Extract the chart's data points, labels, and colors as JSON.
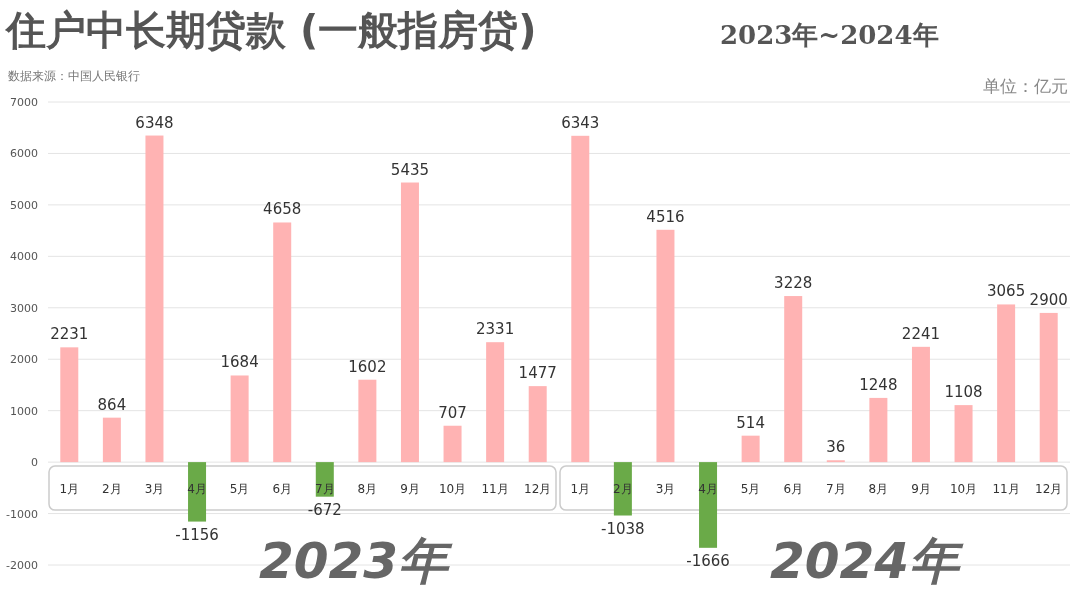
{
  "chart_data": {
    "type": "bar",
    "title": "住户中长期贷款 (一般指房贷)",
    "subtitle": "2023年~2024年",
    "ylabel": "单位：亿元",
    "annotations": [
      "数据来源：中国人民银行",
      "2023年",
      "2024年"
    ],
    "categories": [
      "1月",
      "2月",
      "3月",
      "4月",
      "5月",
      "6月",
      "7月",
      "8月",
      "9月",
      "10月",
      "11月",
      "12月",
      "1月",
      "2月",
      "3月",
      "4月",
      "5月",
      "6月",
      "7月",
      "8月",
      "9月",
      "10月",
      "11月",
      "12月"
    ],
    "values": [
      2231,
      864,
      6348,
      -1156,
      1684,
      4658,
      -672,
      1602,
      5435,
      707,
      2331,
      1477,
      6343,
      -1038,
      4516,
      -1666,
      514,
      3228,
      36,
      1248,
      2241,
      1108,
      3065,
      2900
    ],
    "colors": [
      "#ffb3b3",
      "#ffb3b3",
      "#ffb3b3",
      "#6aaa48",
      "#ffb3b3",
      "#ffb3b3",
      "#6aaa48",
      "#ffb3b3",
      "#ffb3b3",
      "#ffb3b3",
      "#ffb3b3",
      "#ffb3b3",
      "#ffb3b3",
      "#6aaa48",
      "#ffb3b3",
      "#6aaa48",
      "#ffb3b3",
      "#ffb3b3",
      "#ffb3b3",
      "#ffb3b3",
      "#ffb3b3",
      "#ffb3b3",
      "#ffb3b3",
      "#ffb3b3"
    ],
    "ylim": [
      -2000,
      7000
    ],
    "yticks": [
      -2000,
      -1000,
      0,
      1000,
      2000,
      3000,
      4000,
      5000,
      6000,
      7000
    ],
    "grid": "y",
    "data_labels": true
  }
}
